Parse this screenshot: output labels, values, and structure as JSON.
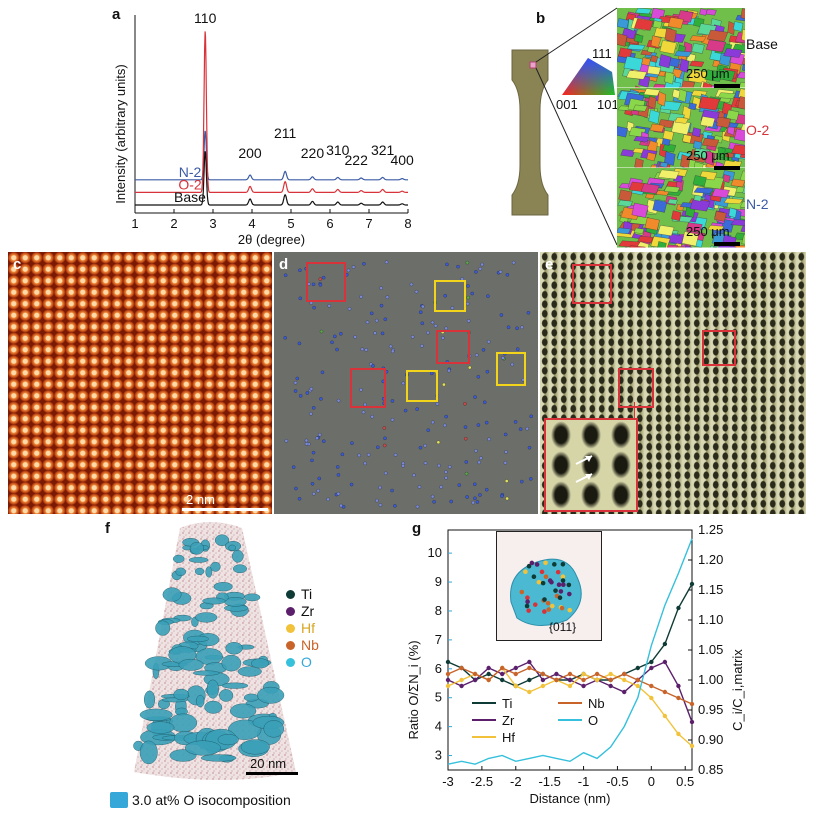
{
  "panels": {
    "a": {
      "label": "a"
    },
    "b": {
      "label": "b",
      "ipf": {
        "c111": "111",
        "c001": "001",
        "c101": "101"
      },
      "maps": [
        {
          "name": "Base",
          "scale": "250 μm"
        },
        {
          "name": "O-2",
          "scale": "250 μm"
        },
        {
          "name": "N-2",
          "scale": "250 μm"
        }
      ]
    },
    "c": {
      "label": "c",
      "scale": "2 nm"
    },
    "d": {
      "label": "d"
    },
    "e": {
      "label": "e"
    },
    "f": {
      "label": "f",
      "scale": "20 nm",
      "iso_label": "3.0 at% O isocomposition",
      "legend": [
        {
          "name": "Ti",
          "color": "#0f3b36"
        },
        {
          "name": "Zr",
          "color": "#5b1f6b"
        },
        {
          "name": "Hf",
          "color": "#f2c23a"
        },
        {
          "name": "Nb",
          "color": "#c8642a"
        },
        {
          "name": "O",
          "color": "#35c0dc"
        }
      ]
    },
    "g": {
      "label": "g",
      "inset_label": "{011}"
    }
  },
  "chart_data": [
    {
      "type": "line",
      "panel": "a",
      "xlabel": "2θ (degree)",
      "ylabel": "Intensity (arbitrary units)",
      "xlim": [
        1,
        8
      ],
      "xticks": [
        "1",
        "2",
        "3",
        "4",
        "5",
        "6",
        "7",
        "8"
      ],
      "peaks": [
        {
          "label": "110",
          "x": 2.8
        },
        {
          "label": "200",
          "x": 3.95
        },
        {
          "label": "211",
          "x": 4.85
        },
        {
          "label": "220",
          "x": 5.55
        },
        {
          "label": "310",
          "x": 6.2
        },
        {
          "label": "222",
          "x": 6.8
        },
        {
          "label": "321",
          "x": 7.35
        },
        {
          "label": "400",
          "x": 7.85
        }
      ],
      "series": [
        {
          "name": "N-2",
          "color": "#3b5ba5",
          "offset": 0.42,
          "heights": [
            0.82,
            0.08,
            0.14,
            0.05,
            0.04,
            0.03,
            0.04,
            0.02
          ]
        },
        {
          "name": "O-2",
          "color": "#d8333a",
          "offset": 0.21,
          "heights": [
            2.7,
            0.1,
            0.18,
            0.06,
            0.05,
            0.03,
            0.05,
            0.02
          ]
        },
        {
          "name": "Base",
          "color": "#111111",
          "offset": 0.0,
          "heights": [
            0.9,
            0.1,
            0.17,
            0.06,
            0.05,
            0.03,
            0.05,
            0.02
          ]
        }
      ]
    },
    {
      "type": "line",
      "panel": "g",
      "xlabel": "Distance (nm)",
      "ylabel": "Ratio O/ΣN_i (%)",
      "y2label": "C_i/C_i,matrix",
      "xlim": [
        -3,
        0.6
      ],
      "ylim": [
        2.5,
        10.8
      ],
      "y2lim": [
        0.85,
        1.25
      ],
      "xticks": [
        "-3",
        "-2.5",
        "-2",
        "-1.5",
        "-1",
        "-0.5",
        "0",
        "0.5"
      ],
      "yticks": [
        "3",
        "4",
        "5",
        "6",
        "7",
        "8",
        "9",
        "10"
      ],
      "y2ticks": [
        "0.85",
        "0.90",
        "0.95",
        "1.00",
        "1.05",
        "1.10",
        "1.15",
        "1.20",
        "1.25"
      ],
      "x": [
        -3.0,
        -2.8,
        -2.6,
        -2.4,
        -2.2,
        -2.0,
        -1.8,
        -1.6,
        -1.4,
        -1.2,
        -1.0,
        -0.8,
        -0.6,
        -0.4,
        -0.2,
        0.0,
        0.2,
        0.4,
        0.6
      ],
      "series": [
        {
          "name": "Ti",
          "color": "#0f3b36",
          "axis": "right",
          "values": [
            1.03,
            1.02,
            1.0,
            1.01,
            1.0,
            0.99,
            1.0,
            1.01,
            1.0,
            1.0,
            1.01,
            1.0,
            1.0,
            1.01,
            1.02,
            1.03,
            1.06,
            1.12,
            1.16
          ]
        },
        {
          "name": "Zr",
          "color": "#5b1f6b",
          "axis": "right",
          "values": [
            1.0,
            0.99,
            1.0,
            1.02,
            1.01,
            1.02,
            1.03,
            1.0,
            1.01,
            1.0,
            0.99,
            1.0,
            0.99,
            0.98,
            1.0,
            1.02,
            1.03,
            0.99,
            0.93
          ]
        },
        {
          "name": "Hf",
          "color": "#f2c23a",
          "axis": "right",
          "values": [
            0.99,
            1.0,
            1.01,
            1.0,
            1.02,
            0.99,
            0.98,
            0.99,
            1.0,
            0.99,
            1.01,
            1.0,
            1.01,
            1.0,
            0.99,
            0.97,
            0.94,
            0.91,
            0.89
          ]
        },
        {
          "name": "Nb",
          "color": "#c8642a",
          "axis": "right",
          "values": [
            1.01,
            1.02,
            1.01,
            1.0,
            1.02,
            1.01,
            1.02,
            1.01,
            1.0,
            1.01,
            1.0,
            1.01,
            1.0,
            1.01,
            1.0,
            0.99,
            0.98,
            0.97,
            0.96
          ]
        },
        {
          "name": "O",
          "color": "#35c0dc",
          "axis": "left",
          "values": [
            2.7,
            2.8,
            2.7,
            2.9,
            3.0,
            2.8,
            2.9,
            3.0,
            2.9,
            2.8,
            3.1,
            2.9,
            3.3,
            4.0,
            5.0,
            6.8,
            8.2,
            9.3,
            10.5
          ]
        }
      ]
    }
  ]
}
